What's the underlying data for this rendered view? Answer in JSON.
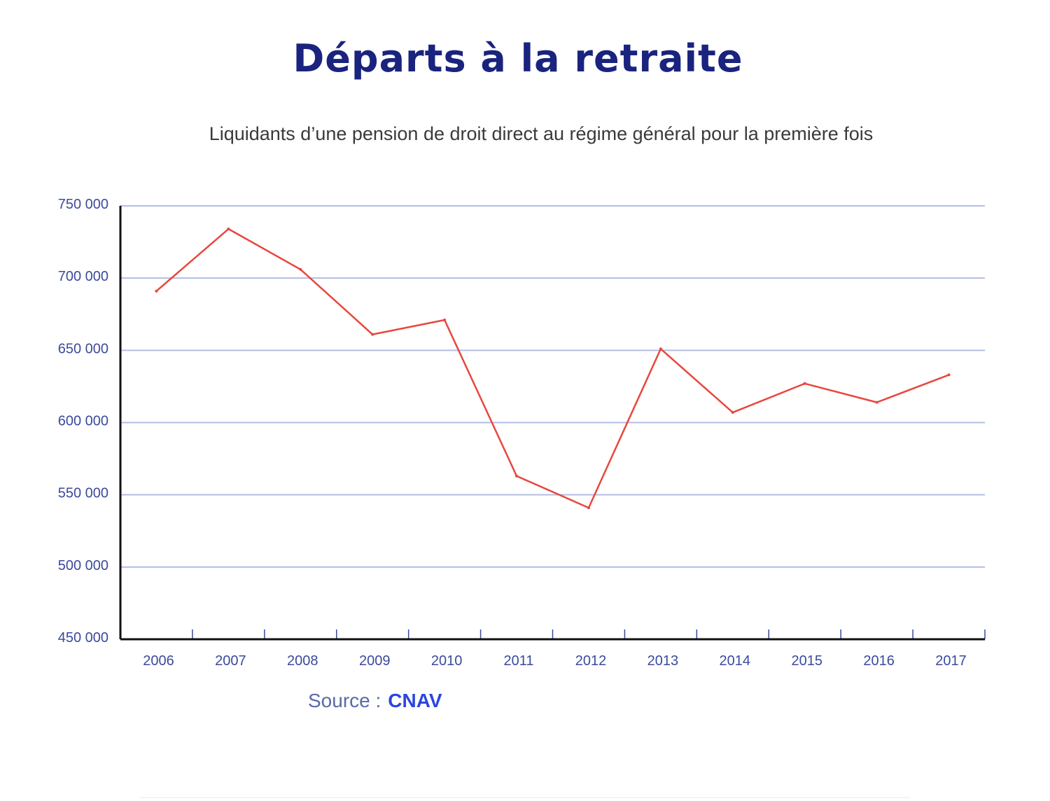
{
  "chart_data": {
    "type": "line",
    "title": "Départs à la retraite",
    "subtitle": "Liquidants d’une pension de droit direct au régime général pour la première fois",
    "categories": [
      "2006",
      "2007",
      "2008",
      "2009",
      "2010",
      "2011",
      "2012",
      "2013",
      "2014",
      "2015",
      "2016",
      "2017"
    ],
    "series": [
      {
        "name": "Liquidants",
        "color": "#e8473e",
        "values": [
          691000,
          734000,
          706000,
          661000,
          671000,
          563000,
          541000,
          651000,
          607000,
          627000,
          614000,
          633000
        ]
      }
    ],
    "y_ticks": [
      450000,
      500000,
      550000,
      600000,
      650000,
      700000,
      750000
    ],
    "y_tick_labels": [
      "450 000",
      "500 000",
      "550 000",
      "600 000",
      "650 000",
      "700 000",
      "750 000"
    ],
    "ylim": [
      450000,
      750000
    ],
    "xlabel": "",
    "ylabel": "",
    "grid": true
  },
  "source": {
    "label": "Source :",
    "name": "CNAV"
  },
  "colors": {
    "title": "#1a237e",
    "gridline": "#b3bde3",
    "axis": "#111111",
    "ticks": "#3b4a9c",
    "line": "#e8473e"
  }
}
